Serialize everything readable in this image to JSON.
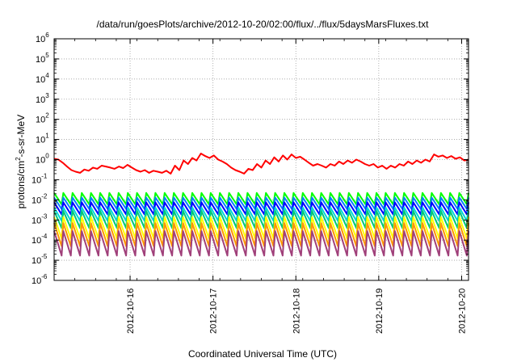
{
  "chart_data": {
    "type": "line",
    "title": "/data/run/goesPlots/archive/2012-10-20/02:00/flux/../flux/5daysMarsFluxes.txt",
    "xlabel": "Coordinated Universal Time (UTC)",
    "ylabel": {
      "base": "protons/cm",
      "sup": "2",
      "rest": "-s-sr-MeV"
    },
    "y_scale": "log",
    "ylim": [
      1e-06,
      1000000.0
    ],
    "y_ticks": [
      {
        "value": 1e-06,
        "base": "10",
        "exp": "-6"
      },
      {
        "value": 1e-05,
        "base": "10",
        "exp": "-5"
      },
      {
        "value": 0.0001,
        "base": "10",
        "exp": "-4"
      },
      {
        "value": 0.001,
        "base": "10",
        "exp": "-3"
      },
      {
        "value": 0.01,
        "base": "10",
        "exp": "-2"
      },
      {
        "value": 0.1,
        "base": "10",
        "exp": "-1"
      },
      {
        "value": 1,
        "base": "10",
        "exp": "0"
      },
      {
        "value": 10.0,
        "base": "10",
        "exp": "1"
      },
      {
        "value": 100.0,
        "base": "10",
        "exp": "2"
      },
      {
        "value": 1000.0,
        "base": "10",
        "exp": "3"
      },
      {
        "value": 10000.0,
        "base": "10",
        "exp": "4"
      },
      {
        "value": 100000.0,
        "base": "10",
        "exp": "5"
      },
      {
        "value": 1000000.0,
        "base": "10",
        "exp": "6"
      }
    ],
    "xlim": [
      "2012-10-15 02:00",
      "2012-10-20 02:00"
    ],
    "x_ticks": [
      "2012-10-16",
      "2012-10-17",
      "2012-10-18",
      "2012-10-19",
      "2012-10-20"
    ],
    "grid": true,
    "series": [
      {
        "color": "#ff0000",
        "style": "smooth",
        "values": [
          1.1,
          1.0,
          0.7,
          0.45,
          0.3,
          0.25,
          0.22,
          0.32,
          0.28,
          0.4,
          0.35,
          0.5,
          0.45,
          0.4,
          0.35,
          0.45,
          0.38,
          0.55,
          0.4,
          0.3,
          0.25,
          0.3,
          0.22,
          0.28,
          0.25,
          0.22,
          0.28,
          0.2,
          0.5,
          0.3,
          0.9,
          0.6,
          1.2,
          0.9,
          2.0,
          1.5,
          1.2,
          1.6,
          1.0,
          0.8,
          0.6,
          0.4,
          0.3,
          0.25,
          0.2,
          0.35,
          0.3,
          0.6,
          0.4,
          0.9,
          0.6,
          1.3,
          0.8,
          1.6,
          1.0,
          1.8,
          1.2,
          1.4,
          1.0,
          0.7,
          0.5,
          0.6,
          0.5,
          0.4,
          0.6,
          0.5,
          0.8,
          0.6,
          0.9,
          0.7,
          1.0,
          0.8,
          0.6,
          0.5,
          0.6,
          0.4,
          0.5,
          0.35,
          0.5,
          0.4,
          0.6,
          0.5,
          0.8,
          0.6,
          0.9,
          0.7,
          1.0,
          0.8,
          1.8,
          1.4,
          1.6,
          1.2,
          1.5,
          1.1,
          1.3,
          0.9,
          1.0
        ]
      },
      {
        "color": "#00ff00",
        "style": "sawtooth",
        "peaks": 45,
        "hi": 0.022,
        "lo": 0.006
      },
      {
        "color": "#0080ff",
        "style": "sawtooth",
        "peaks": 45,
        "hi": 0.013,
        "lo": 0.0035
      },
      {
        "color": "#0000ff",
        "style": "sawtooth",
        "peaks": 45,
        "hi": 0.0075,
        "lo": 0.0019
      },
      {
        "color": "#00d7d7",
        "style": "sawtooth",
        "peaks": 45,
        "hi": 0.0042,
        "lo": 0.0009
      },
      {
        "color": "#00c878",
        "style": "sawtooth",
        "peaks": 45,
        "hi": 0.0028,
        "lo": 0.0004
      },
      {
        "color": "#ffff00",
        "style": "sawtooth",
        "peaks": 45,
        "hi": 0.0014,
        "lo": 0.00012
      },
      {
        "color": "#ff9500",
        "style": "sawtooth",
        "peaks": 45,
        "hi": 0.0007,
        "lo": 5e-05
      },
      {
        "color": "#a0407a",
        "style": "sawtooth",
        "peaks": 45,
        "hi": 0.00028,
        "lo": 1.7e-05
      }
    ]
  }
}
